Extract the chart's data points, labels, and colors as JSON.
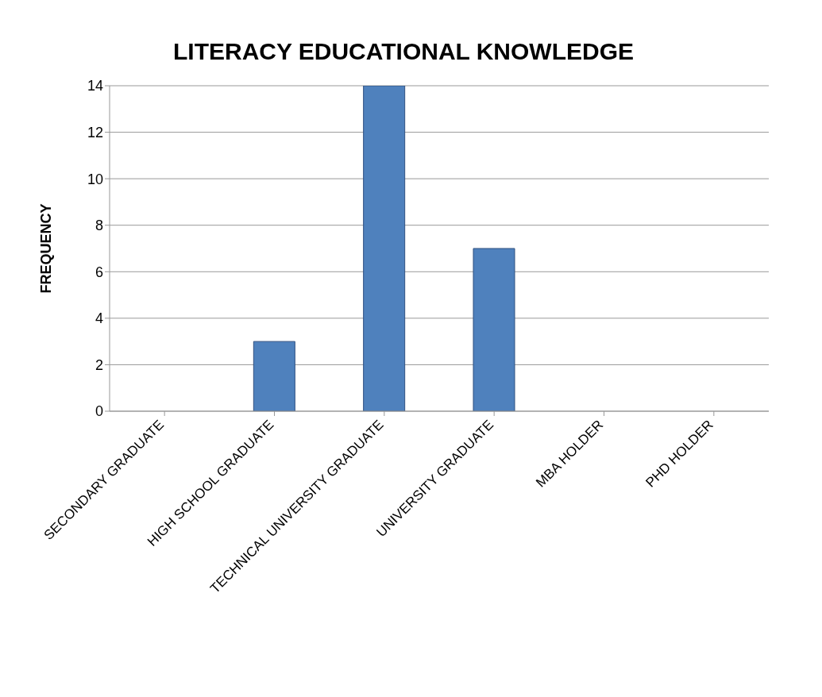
{
  "chart_data": {
    "type": "bar",
    "title": "LITERACY EDUCATIONAL KNOWLEDGE",
    "ylabel": "FREQUENCY",
    "categories": [
      "SECONDARY GRADUATE",
      "HIGH SCHOOL GRADUATE",
      "TECHNICAL UNIVERSITY GRADUATE",
      "UNIVERSITY GRADUATE",
      "MBA HOLDER",
      "PHD HOLDER"
    ],
    "values": [
      0,
      3,
      14,
      7,
      0,
      0
    ],
    "color": "#4f81bd",
    "ylim": [
      0,
      14
    ],
    "yticks": [
      0,
      2,
      4,
      6,
      8,
      10,
      12,
      14
    ],
    "grid": "y"
  }
}
